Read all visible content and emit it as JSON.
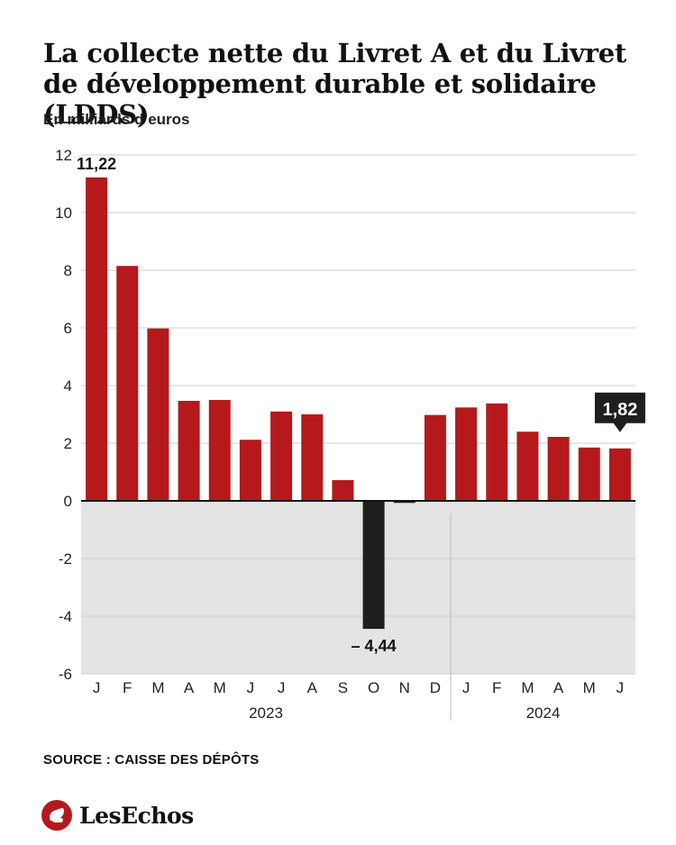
{
  "title": "La collecte nette du Livret A et du Livret de développement durable et solidaire (LDDS)",
  "subtitle": "En milliards d’euros",
  "source": "SOURCE : CAISSE DES DÉPÔTS",
  "brand": "LesEchos",
  "colors": {
    "positive": "#b5191c",
    "negative": "#1e1e1c",
    "negative_zone": "#e4e4e4",
    "grid": "#cccccc",
    "label_box": "#1e1e1c"
  },
  "chart_data": {
    "type": "bar",
    "title": "La collecte nette du Livret A et du Livret de développement durable et solidaire (LDDS)",
    "ylabel": "En milliards d’euros",
    "xlabel": "",
    "ylim": [
      -6,
      12
    ],
    "yticks": [
      12,
      10,
      8,
      6,
      4,
      2,
      0,
      -2,
      -4,
      -6
    ],
    "ytick_labels": [
      "12",
      "10",
      "8",
      "6",
      "4",
      "2",
      "0",
      "-2",
      "-4",
      "-6"
    ],
    "categories": [
      "J",
      "F",
      "M",
      "A",
      "M",
      "J",
      "J",
      "A",
      "S",
      "O",
      "N",
      "D",
      "J",
      "F",
      "M",
      "A",
      "M",
      "J"
    ],
    "values": [
      11.22,
      8.15,
      5.98,
      3.47,
      3.5,
      2.12,
      3.1,
      3.0,
      0.72,
      -4.44,
      -0.07,
      2.98,
      3.24,
      3.38,
      2.4,
      2.22,
      1.85,
      1.82
    ],
    "years": [
      {
        "label": "2023",
        "start": 0,
        "end": 11
      },
      {
        "label": "2024",
        "start": 12,
        "end": 17
      }
    ],
    "annotations": [
      {
        "index": 0,
        "text": "11,22",
        "style": "plain"
      },
      {
        "index": 9,
        "text": "– 4,44",
        "style": "plain"
      },
      {
        "index": 17,
        "text": "1,82",
        "style": "box"
      }
    ],
    "grid": true
  }
}
